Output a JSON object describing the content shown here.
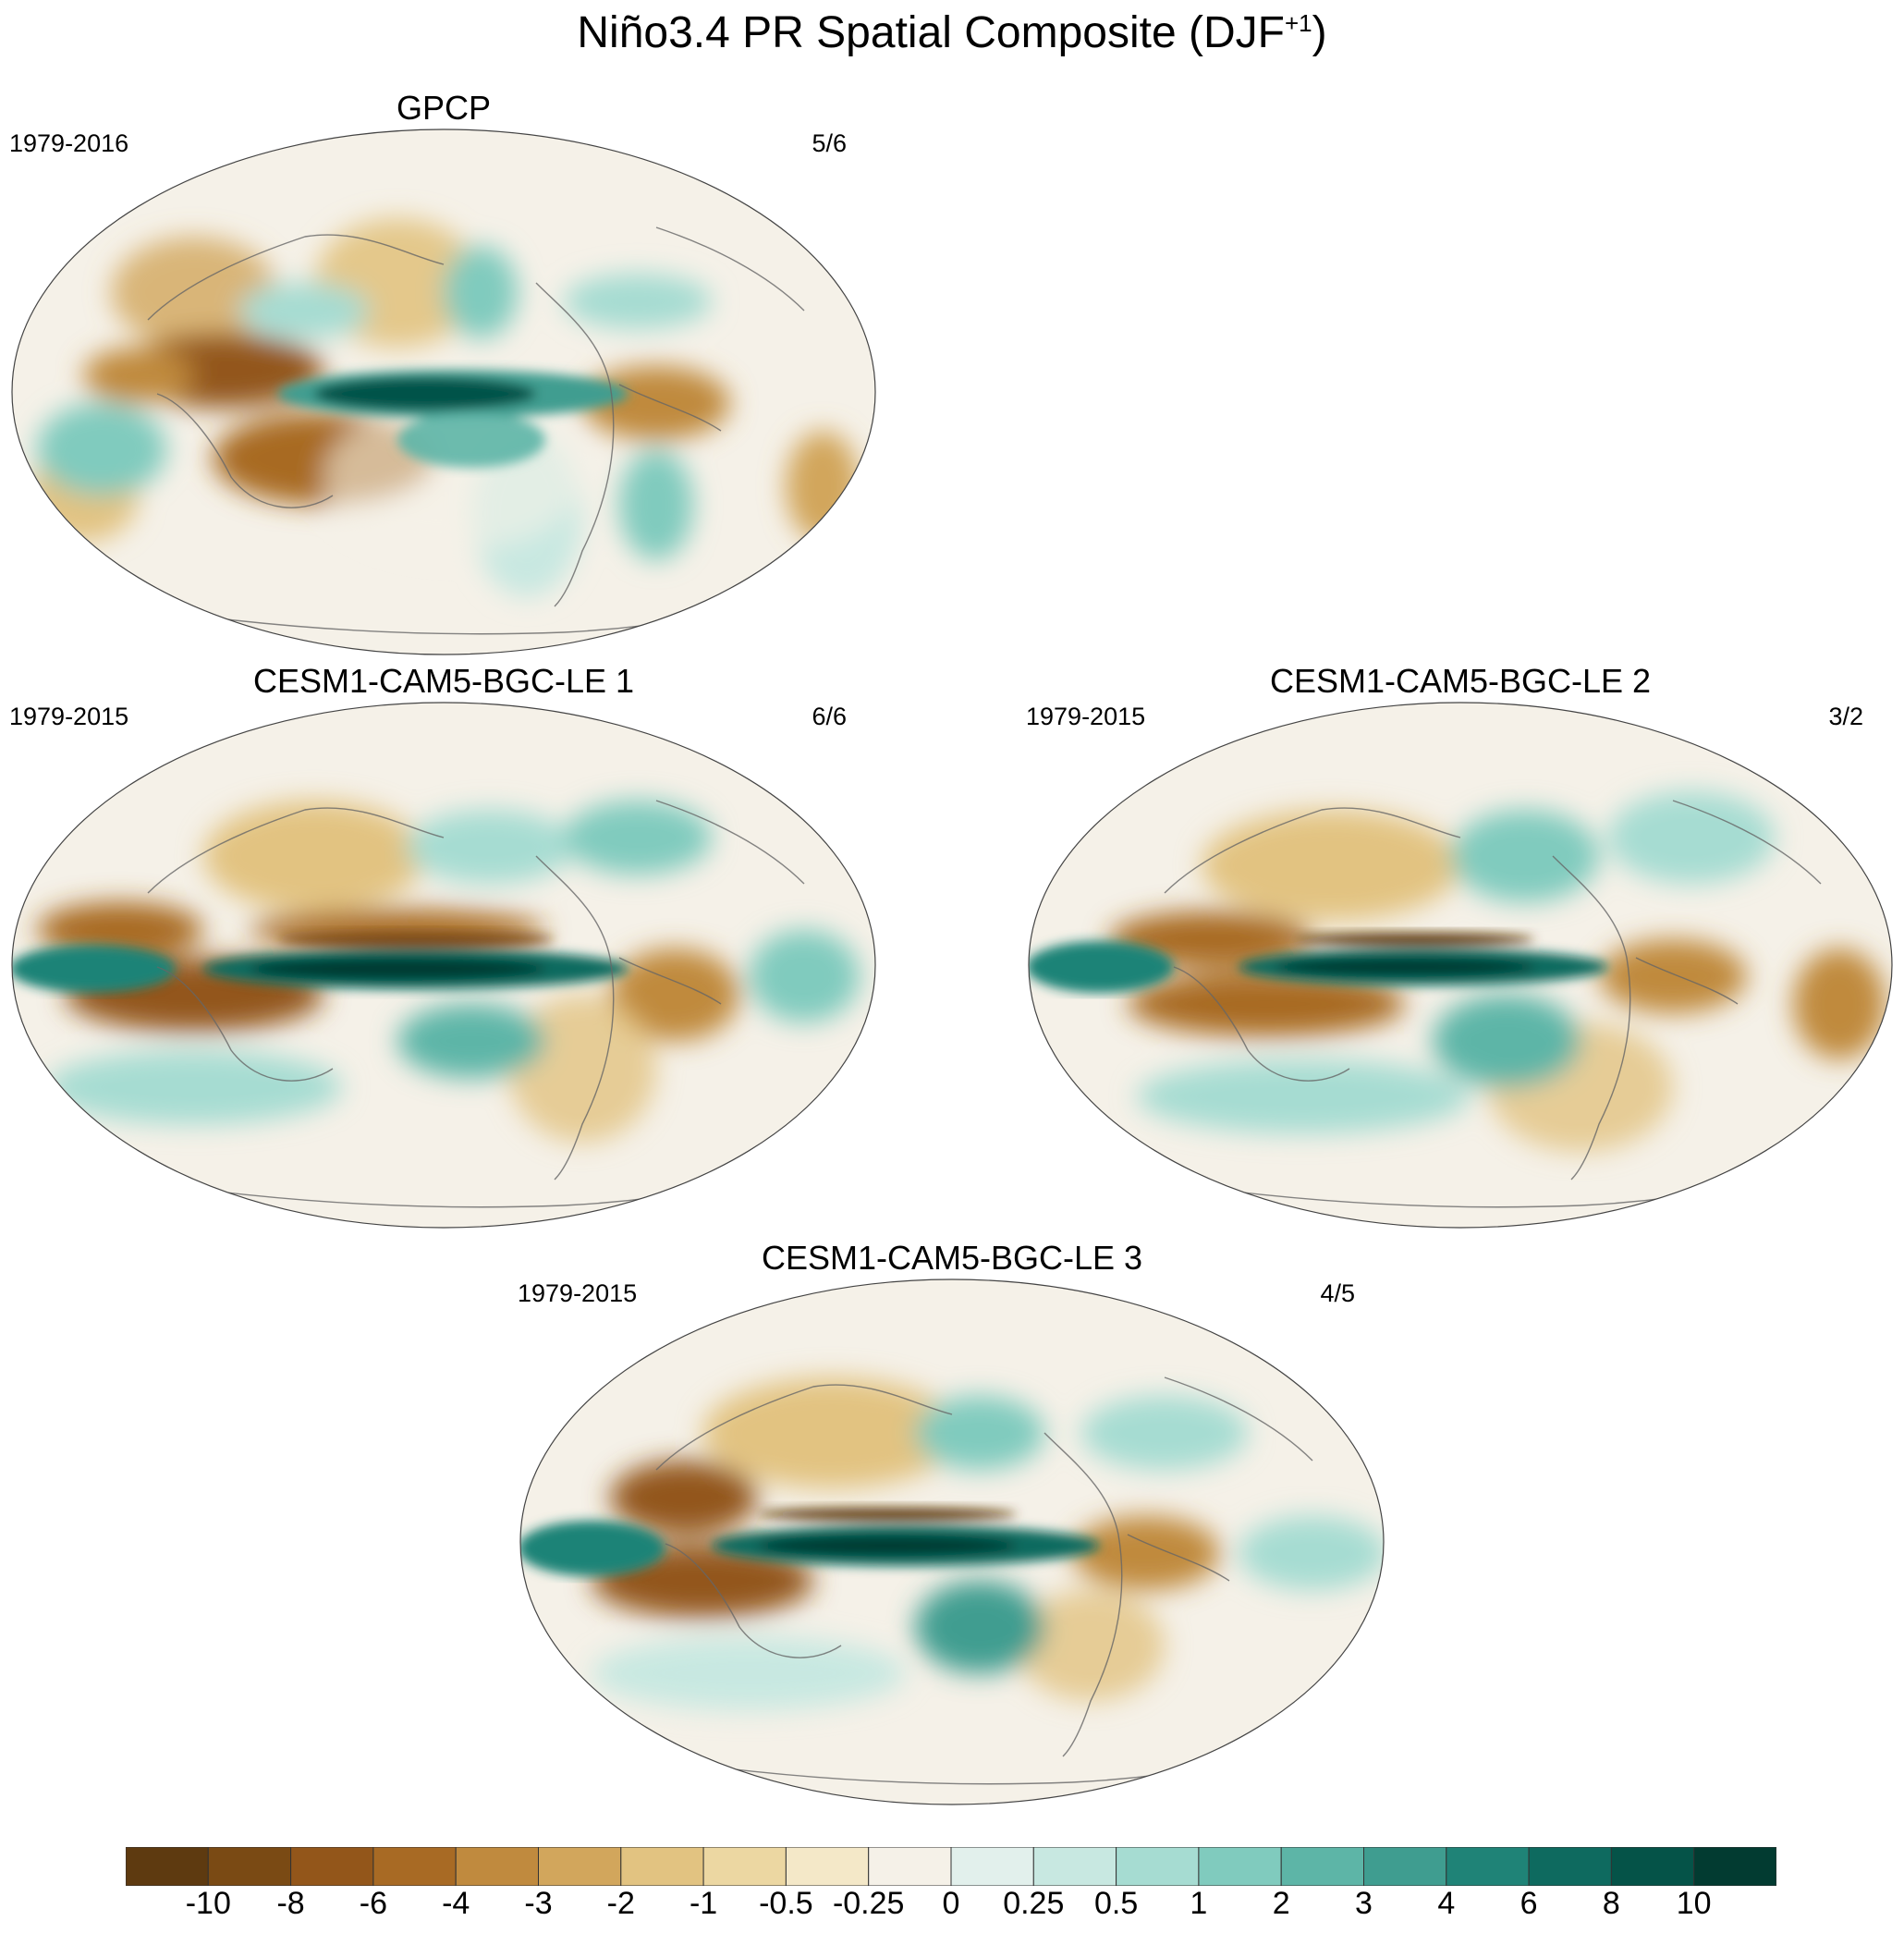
{
  "figure": {
    "title_main": "Niño3.4 PR Spatial Composite (DJF",
    "title_sup": "+1",
    "title_end": ")"
  },
  "panels": [
    {
      "title": "GPCP",
      "years": "1979-2016",
      "ratio": "5/6"
    },
    {
      "title": "CESM1-CAM5-BGC-LE 1",
      "years": "1979-2015",
      "ratio": "6/6"
    },
    {
      "title": "CESM1-CAM5-BGC-LE 2",
      "years": "1979-2015",
      "ratio": "3/2"
    },
    {
      "title": "CESM1-CAM5-BGC-LE 3",
      "years": "1979-2015",
      "ratio": "4/5"
    }
  ],
  "colorbar": {
    "levels": [
      "-10",
      "-8",
      "-6",
      "-4",
      "-3",
      "-2",
      "-1",
      "-0.5",
      "-0.25",
      "0",
      "0.25",
      "0.5",
      "1",
      "2",
      "3",
      "4",
      "6",
      "8",
      "10"
    ],
    "colors": [
      "#5e3a10",
      "#7a4a14",
      "#93561a",
      "#a86a24",
      "#c08a3e",
      "#d2a65c",
      "#e2c381",
      "#ecd7a2",
      "#f4e8c8",
      "#f5f1e8",
      "#e2f0ec",
      "#c8e8e1",
      "#a6dcd2",
      "#80cbbe",
      "#5db5a7",
      "#3f9d90",
      "#1f8377",
      "#0e6a5f",
      "#055348",
      "#023b31"
    ]
  },
  "chart_data": {
    "type": "heatmap",
    "variable": "precipitation anomaly composite",
    "projection": "global elliptical (Robinson-like)",
    "contour_levels": [
      -10,
      -8,
      -6,
      -4,
      -3,
      -2,
      -1,
      -0.5,
      -0.25,
      0,
      0.25,
      0.5,
      1,
      2,
      3,
      4,
      6,
      8,
      10
    ],
    "maps": [
      {
        "title": "GPCP",
        "years": "1979-2016",
        "ratio": "5/6"
      },
      {
        "title": "CESM1-CAM5-BGC-LE 1",
        "years": "1979-2015",
        "ratio": "6/6"
      },
      {
        "title": "CESM1-CAM5-BGC-LE 2",
        "years": "1979-2015",
        "ratio": "3/2"
      },
      {
        "title": "CESM1-CAM5-BGC-LE 3",
        "years": "1979-2015",
        "ratio": "4/5"
      }
    ]
  }
}
